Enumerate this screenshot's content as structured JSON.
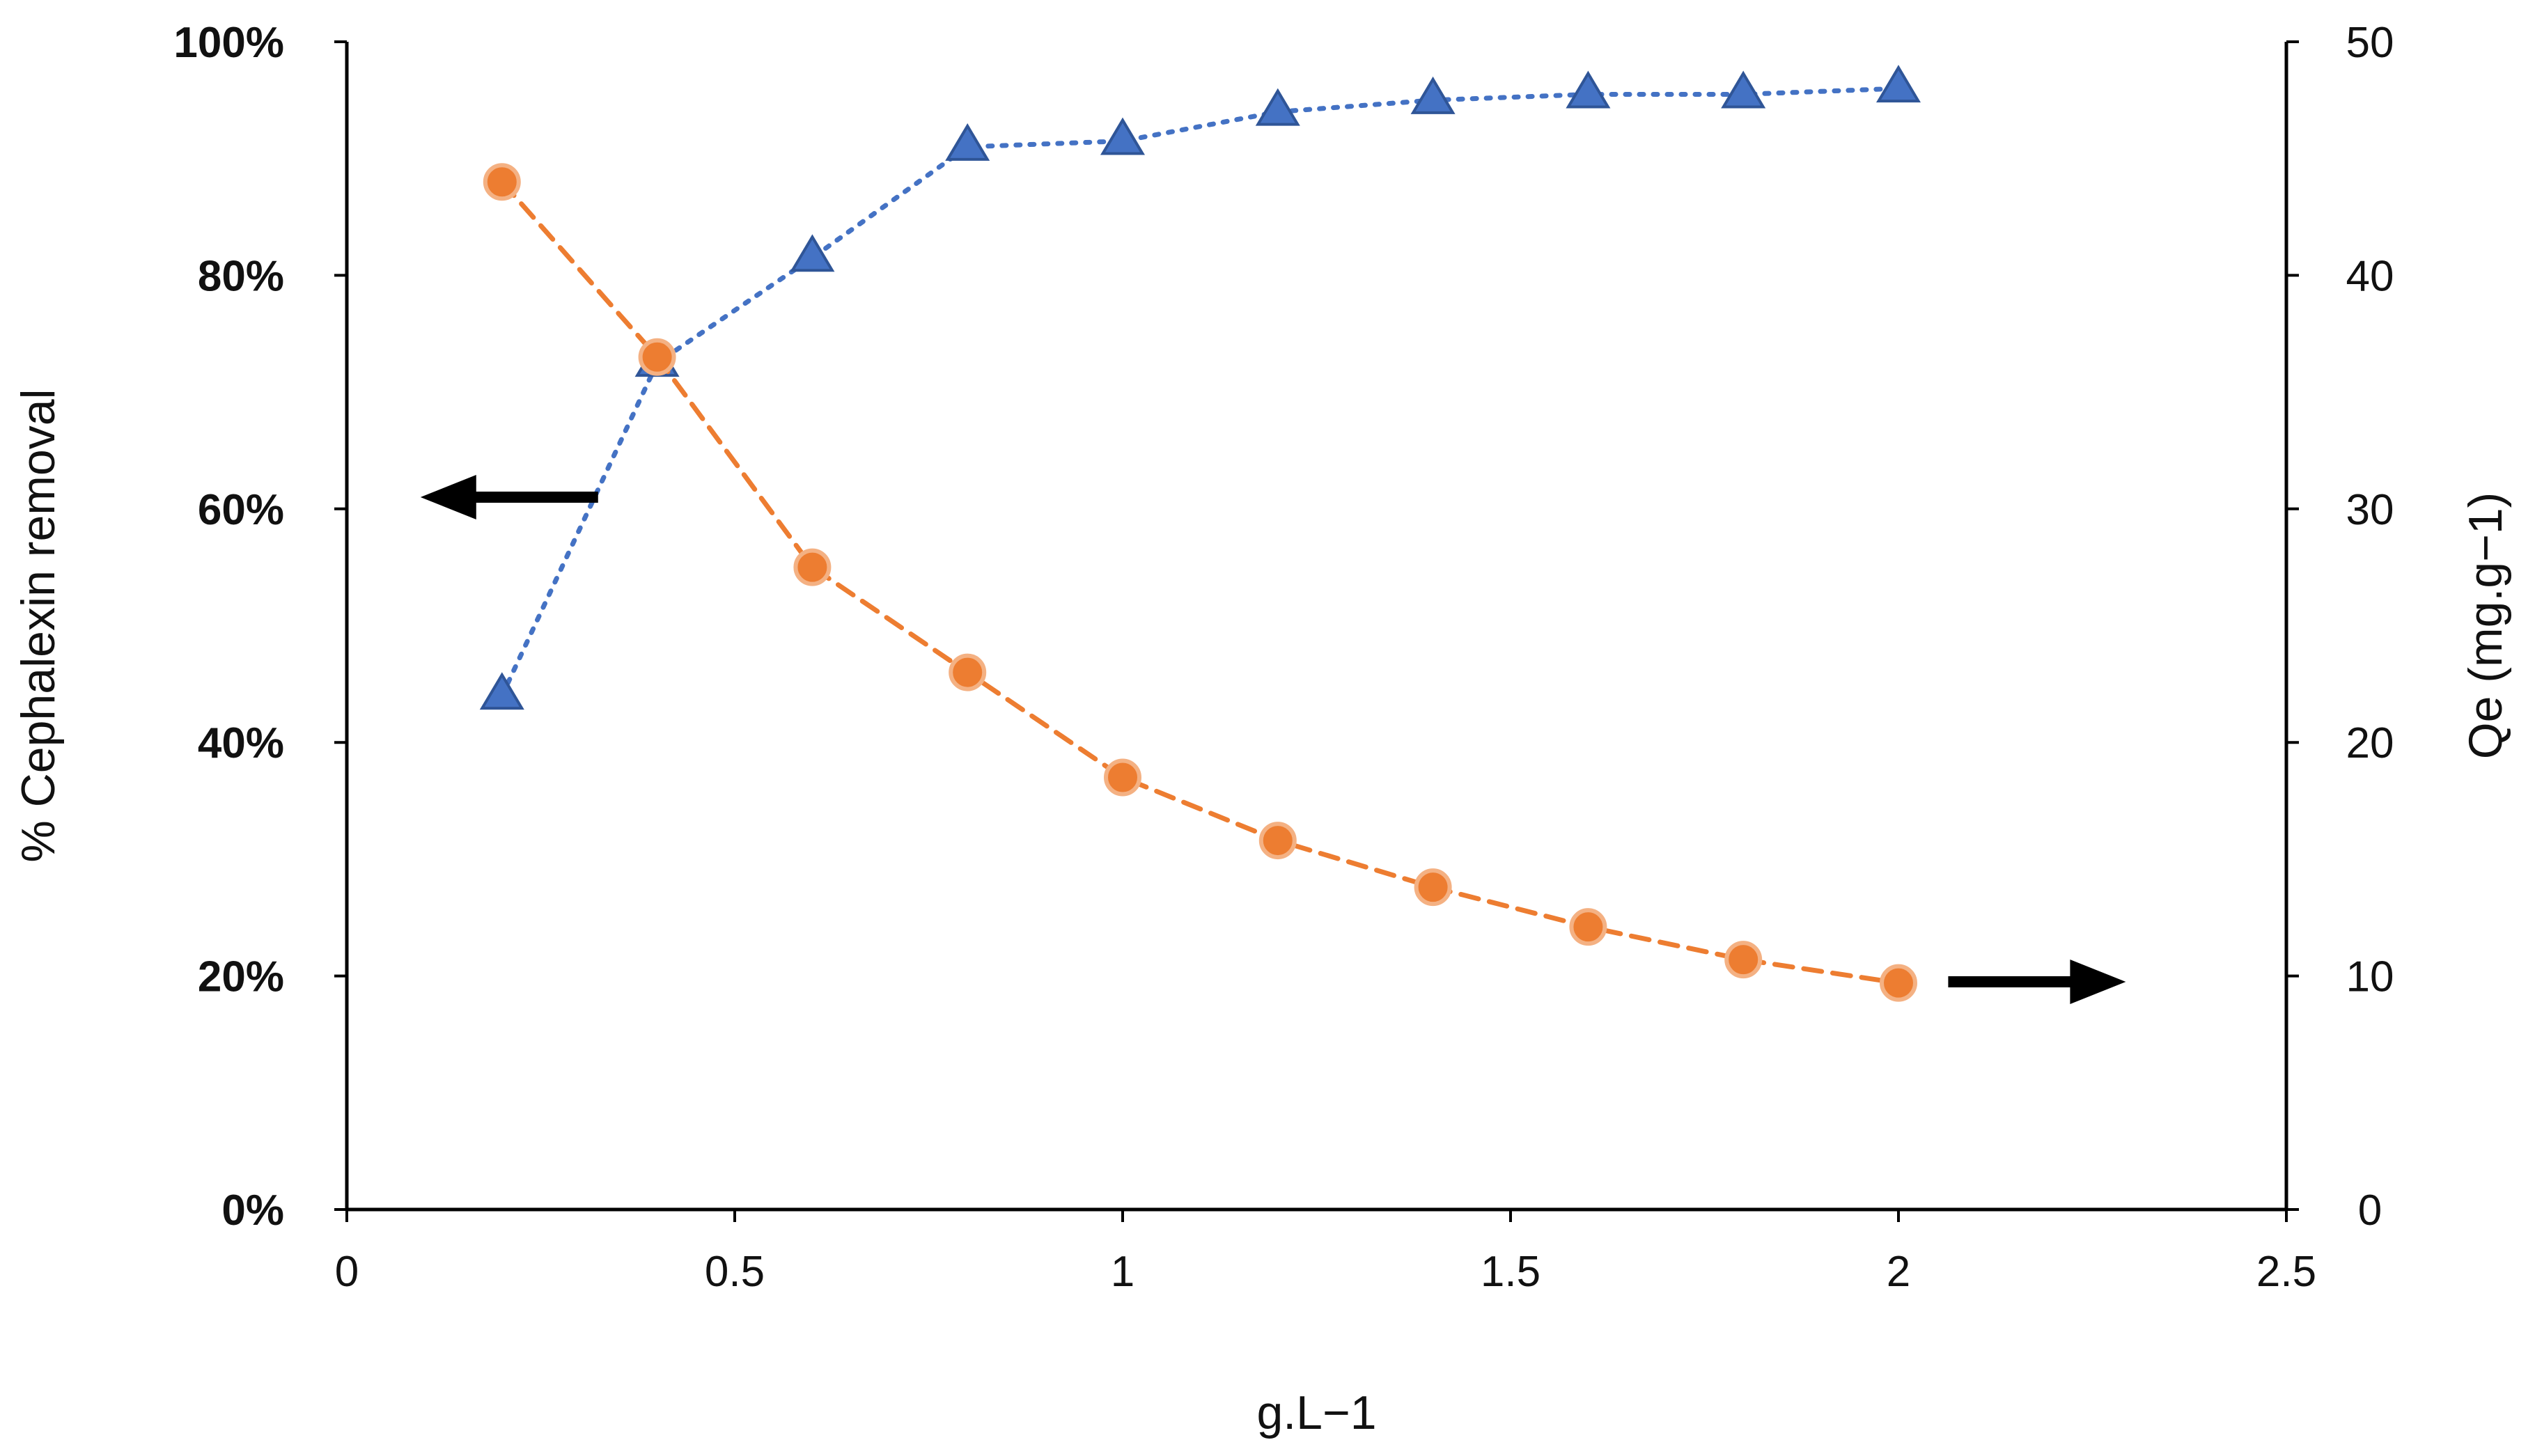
{
  "chart_data": {
    "type": "line",
    "title": "",
    "xlabel": "g.L−1",
    "ylabel_left": "% Cephalexin removal",
    "ylabel_right": "Qe (mg.g−1)",
    "xlim": [
      0,
      2.5
    ],
    "ylim_left": [
      0,
      100
    ],
    "ylim_right": [
      0,
      50
    ],
    "grid": false,
    "x_ticks": [
      "0",
      "0.5",
      "1",
      "1.5",
      "2",
      "2.5"
    ],
    "y_left_ticks": [
      "0%",
      "20%",
      "40%",
      "60%",
      "80%",
      "100%"
    ],
    "y_right_ticks": [
      "0",
      "10",
      "20",
      "30",
      "40",
      "50"
    ],
    "x": [
      0.2,
      0.4,
      0.6,
      0.8,
      1.0,
      1.2,
      1.4,
      1.6,
      1.8,
      2.0
    ],
    "series": [
      {
        "name": "% Cephalexin removal",
        "axis": "left",
        "marker": "triangle",
        "line": "dotted",
        "color": "#4472C4",
        "edge_color": "#2F5597",
        "values": [
          44,
          72.5,
          81.5,
          91,
          91.5,
          94,
          95,
          95.5,
          95.5,
          96
        ]
      },
      {
        "name": "Qe",
        "axis": "right",
        "marker": "circle",
        "line": "dashed",
        "color": "#ED7D31",
        "edge_color": "#F4B183",
        "values": [
          44,
          36.5,
          27.5,
          23,
          18.5,
          15.8,
          13.8,
          12.1,
          10.7,
          9.7
        ]
      }
    ],
    "annotations": [
      {
        "type": "arrow",
        "direction": "left",
        "meaning": "left axis series",
        "at_x": 0.27,
        "at_y_left": 61
      },
      {
        "type": "arrow",
        "direction": "right",
        "meaning": "right axis series",
        "at_x": 2.1,
        "at_y_left": 19.5
      }
    ]
  }
}
